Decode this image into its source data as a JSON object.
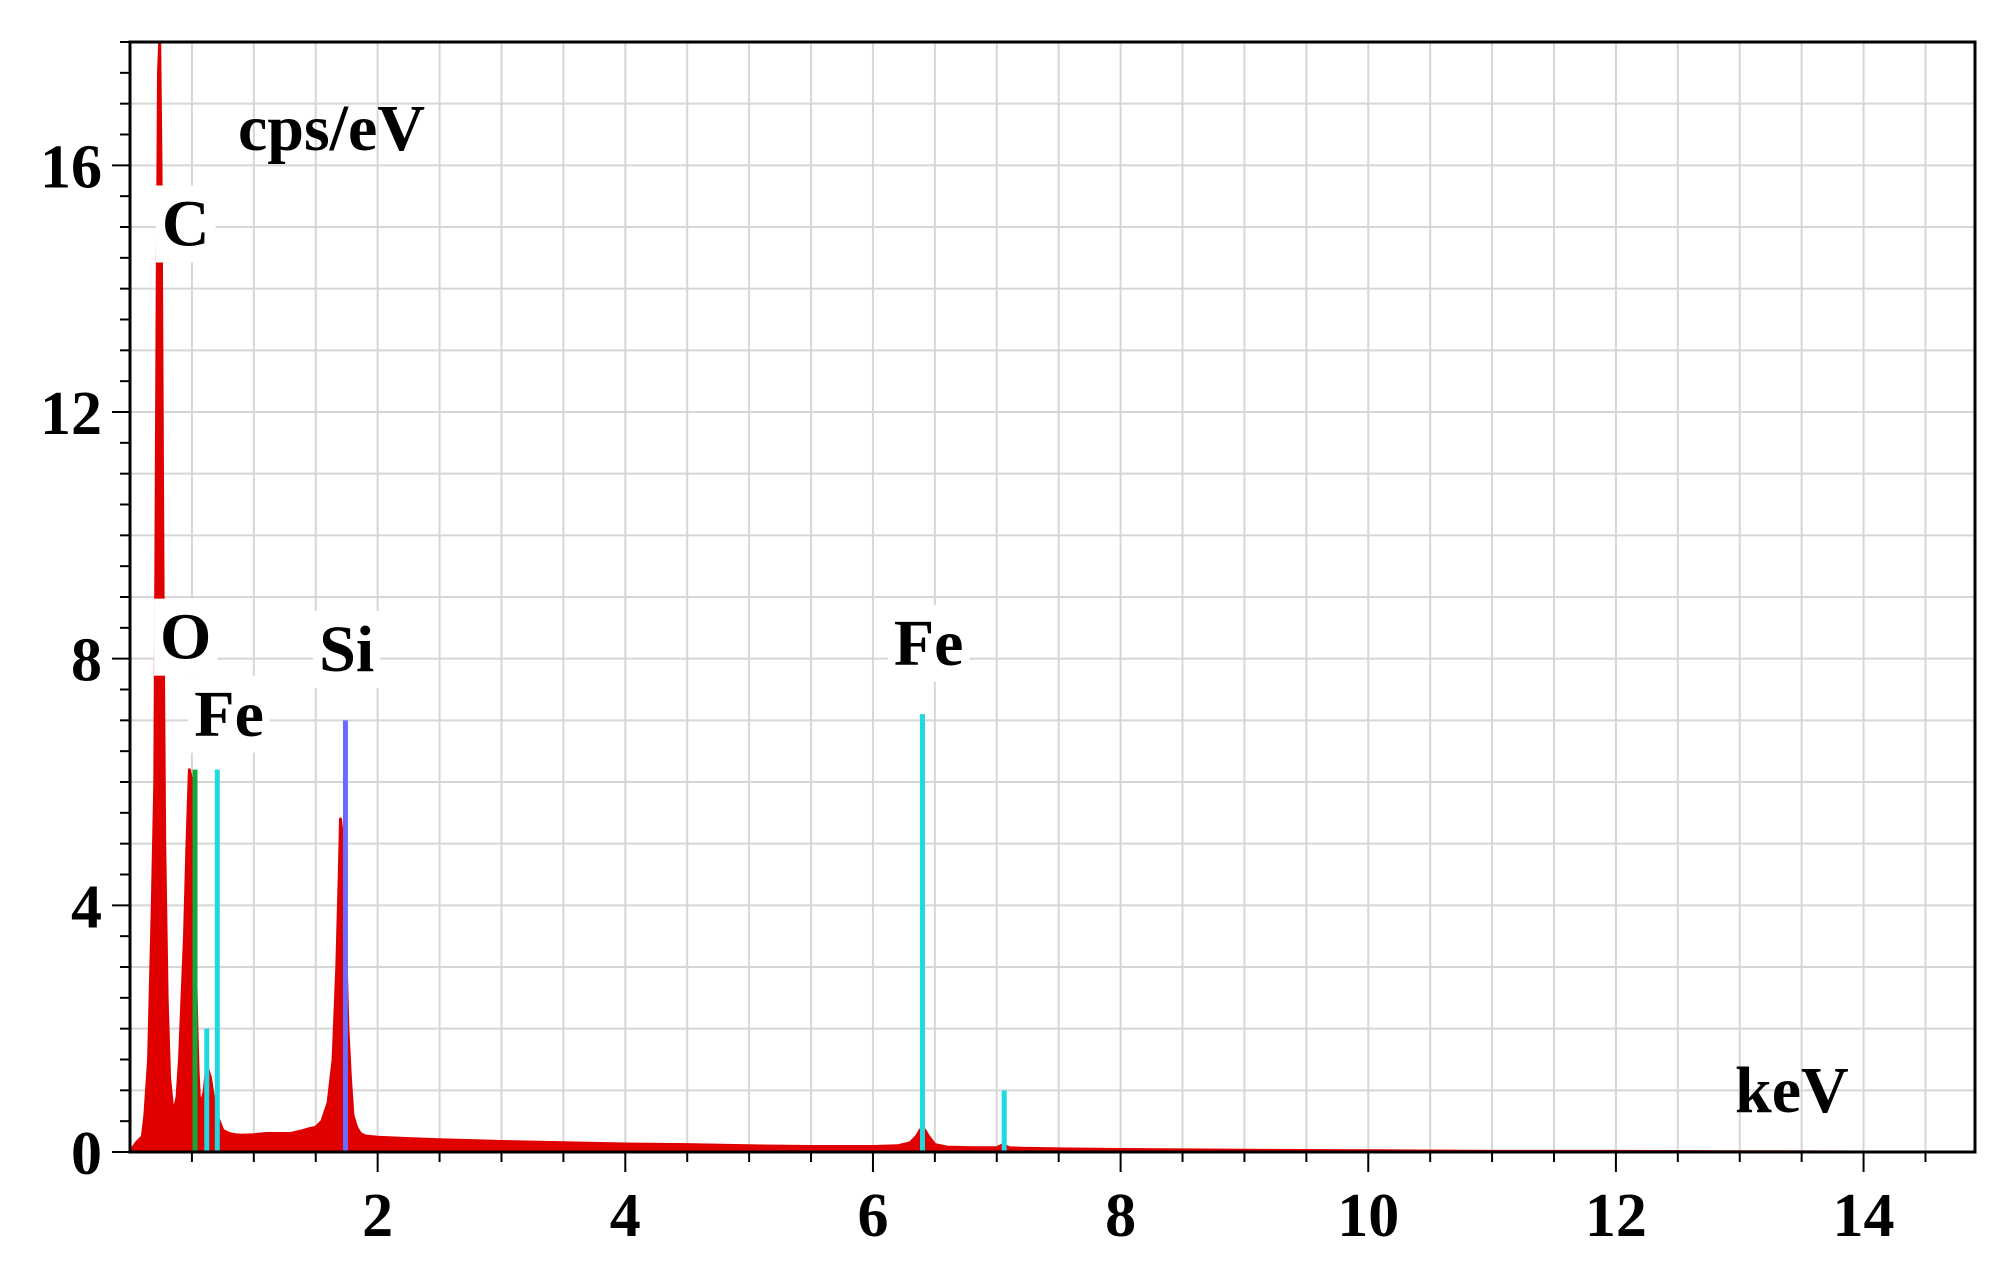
{
  "chart_data": {
    "type": "line",
    "title": "",
    "xlabel": "keV",
    "ylabel": "cps/eV",
    "xlim": [
      0.0,
      14.9
    ],
    "ylim": [
      0,
      18
    ],
    "x_ticks": [
      2,
      4,
      6,
      8,
      10,
      12,
      14
    ],
    "y_ticks": [
      0,
      4,
      8,
      12,
      16
    ],
    "grid": true,
    "colors": {
      "spectrum": "#e00000",
      "O": "#12a83a",
      "Si": "#6b6bff",
      "Fe": "#20d8e0",
      "grid": "#d6d6d6",
      "axis": "#000000"
    },
    "spectrum": {
      "x": [
        0.0,
        0.05,
        0.1,
        0.12,
        0.15,
        0.18,
        0.2,
        0.21,
        0.22,
        0.23,
        0.24,
        0.25,
        0.26,
        0.27,
        0.28,
        0.3,
        0.32,
        0.35,
        0.38,
        0.4,
        0.42,
        0.44,
        0.46,
        0.48,
        0.5,
        0.52,
        0.53,
        0.54,
        0.55,
        0.56,
        0.58,
        0.6,
        0.62,
        0.65,
        0.68,
        0.7,
        0.72,
        0.75,
        0.8,
        0.85,
        0.9,
        1.0,
        1.1,
        1.2,
        1.3,
        1.4,
        1.45,
        1.5,
        1.55,
        1.6,
        1.64,
        1.67,
        1.69,
        1.7,
        1.72,
        1.74,
        1.76,
        1.78,
        1.8,
        1.83,
        1.86,
        1.9,
        2.0,
        2.2,
        2.5,
        3.0,
        3.5,
        4.0,
        4.5,
        5.0,
        5.5,
        6.0,
        6.2,
        6.3,
        6.35,
        6.38,
        6.4,
        6.42,
        6.45,
        6.5,
        6.6,
        6.8,
        7.0,
        7.03,
        7.05,
        7.07,
        7.1,
        7.2,
        7.5,
        8.0,
        9.0,
        10.0,
        10.1,
        11.0,
        12.0,
        13.0,
        14.0,
        14.9
      ],
      "y": [
        0.0,
        0.15,
        0.25,
        0.6,
        1.5,
        4.0,
        6.0,
        10.0,
        14.0,
        17.5,
        18.0,
        16.0,
        12.0,
        8.0,
        5.0,
        2.5,
        1.2,
        0.6,
        0.9,
        1.5,
        2.5,
        3.5,
        5.0,
        6.2,
        6.0,
        4.8,
        3.0,
        2.0,
        1.3,
        0.9,
        0.8,
        1.0,
        1.4,
        1.2,
        0.8,
        0.6,
        0.5,
        0.35,
        0.3,
        0.28,
        0.27,
        0.28,
        0.3,
        0.3,
        0.3,
        0.35,
        0.38,
        0.4,
        0.5,
        0.8,
        1.5,
        3.0,
        4.5,
        5.4,
        5.0,
        3.5,
        2.0,
        1.2,
        0.6,
        0.4,
        0.3,
        0.26,
        0.24,
        0.22,
        0.2,
        0.17,
        0.15,
        0.13,
        0.12,
        0.1,
        0.09,
        0.09,
        0.1,
        0.15,
        0.25,
        0.35,
        0.4,
        0.35,
        0.25,
        0.12,
        0.08,
        0.07,
        0.07,
        0.1,
        0.12,
        0.1,
        0.07,
        0.06,
        0.05,
        0.04,
        0.03,
        0.02,
        0.02,
        0.01,
        0.01,
        0.005,
        0.0,
        0.0
      ]
    },
    "element_lines": [
      {
        "element": "O",
        "energy": 0.525,
        "height": 6.2
      },
      {
        "element": "Fe",
        "energy": 0.705,
        "height": 6.2
      },
      {
        "element": "Fe",
        "energy": 0.62,
        "height": 2.0
      },
      {
        "element": "Si",
        "energy": 1.74,
        "height": 7.0
      },
      {
        "element": "Fe",
        "energy": 6.4,
        "height": 7.1
      },
      {
        "element": "Fe",
        "energy": 7.06,
        "height": 1.0
      }
    ],
    "peak_labels": [
      {
        "text": "C",
        "x": 0.45,
        "y": 14.7
      },
      {
        "text": "O",
        "x": 0.45,
        "y": 8.0
      },
      {
        "text": "Fe",
        "x": 0.8,
        "y": 6.75
      },
      {
        "text": "Si",
        "x": 1.75,
        "y": 7.8
      },
      {
        "text": "Fe",
        "x": 6.45,
        "y": 7.9
      }
    ]
  }
}
